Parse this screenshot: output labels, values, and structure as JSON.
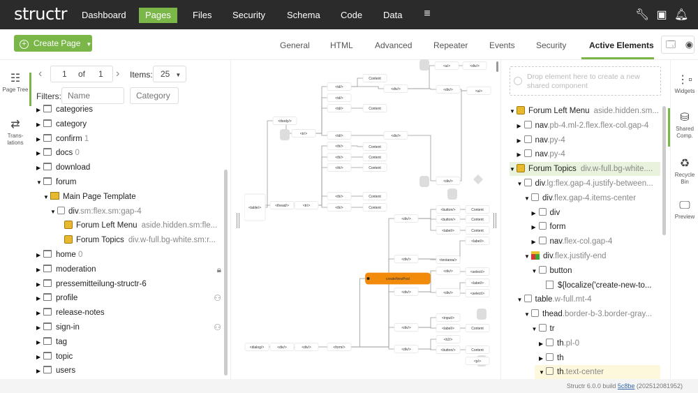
{
  "app": {
    "logo": "structr",
    "nav": [
      "Dashboard",
      "Pages",
      "Files",
      "Security",
      "Schema",
      "Code",
      "Data"
    ],
    "active_nav": "Pages",
    "menu_icon": "hamburger-icon",
    "right_icons": [
      "wrench-icon",
      "terminal-icon",
      "bell-icon"
    ]
  },
  "toolbar": {
    "create_page": "Create Page",
    "tabs": [
      "General",
      "HTML",
      "Advanced",
      "Repeater",
      "Events",
      "Security",
      "Active Elements"
    ],
    "active_tab": "Active Elements"
  },
  "left_strip": [
    {
      "label": "Page Tree",
      "icon": "page-tree-icon",
      "active": true
    },
    {
      "label": "Trans-lations",
      "icon": "translations-icon"
    }
  ],
  "pager": {
    "page": "1",
    "of": "of",
    "total": "1",
    "items_label": "Items:",
    "items_value": "25",
    "filters_label": "Filters:",
    "name_placeholder": "Name",
    "category_placeholder": "Category"
  },
  "page_tree": [
    {
      "name": "categories",
      "level": 0,
      "arrow": "right"
    },
    {
      "name": "category",
      "level": 0,
      "arrow": "right"
    },
    {
      "name": "confirm",
      "count": "1",
      "level": 0,
      "arrow": "right"
    },
    {
      "name": "docs",
      "count": "0",
      "level": 0,
      "arrow": "right"
    },
    {
      "name": "download",
      "level": 0,
      "arrow": "right"
    },
    {
      "name": "forum",
      "level": 0,
      "arrow": "down"
    },
    {
      "name": "Main Page Template",
      "level": 1,
      "arrow": "down",
      "type": "template"
    },
    {
      "name": "div",
      "cls": ".sm:flex.sm:gap-4",
      "level": 2,
      "arrow": "down",
      "type": "element"
    },
    {
      "name": "Forum Left Menu",
      "cls": "aside.hidden.sm:fle...",
      "level": 3,
      "type": "component"
    },
    {
      "name": "Forum Topics",
      "cls": "div.w-full.bg-white.sm:r...",
      "level": 3,
      "type": "component"
    },
    {
      "name": "home",
      "count": "0",
      "level": 0,
      "arrow": "right"
    },
    {
      "name": "moderation",
      "level": 0,
      "arrow": "right",
      "right_icon": "lock-icon"
    },
    {
      "name": "pressemitteilung-structr-6",
      "level": 0,
      "arrow": "right"
    },
    {
      "name": "profile",
      "level": 0,
      "arrow": "right",
      "right_icon": "users-icon"
    },
    {
      "name": "release-notes",
      "level": 0,
      "arrow": "right"
    },
    {
      "name": "sign-in",
      "level": 0,
      "arrow": "right",
      "right_icon": "users-icon"
    },
    {
      "name": "tag",
      "level": 0,
      "arrow": "right"
    },
    {
      "name": "topic",
      "level": 0,
      "arrow": "right"
    },
    {
      "name": "users",
      "level": 0,
      "arrow": "right"
    }
  ],
  "graph": {
    "nodes": [
      "<table/>",
      "<tbody/>",
      "<tr/>",
      "<td/>",
      "<td/>",
      "<td/>",
      "<td/>",
      "Content",
      "Content",
      "<div/>",
      "<div/>",
      "<a/>",
      "<div/>",
      "<div/>",
      "<a/>",
      "<th/>",
      "<th/>",
      "<th/>",
      "<th/>",
      "<th/>",
      "Content",
      "Content",
      "Content",
      "Content",
      "Content",
      "<thead/>",
      "<tr/>",
      "<div/>",
      "<button/>",
      "Content",
      "<div/>",
      "<button/>",
      "Content",
      "<label/>",
      "Content",
      "<label/>",
      "<div/>",
      "<textarea/>",
      "<div/>",
      "<select/>",
      "createNewPost",
      "<div/>",
      "<div/>",
      "<label/>",
      "<select/>",
      "<input/>",
      "<div/>",
      "<label/>",
      "Content",
      "<h2/>",
      "<div/>",
      "<button/>",
      "Content",
      "<p/>",
      "<dialog/>",
      "<div/>",
      "<div/>",
      "<form/>"
    ],
    "action_color": "#f28a0c"
  },
  "shared": {
    "drop_text": "Drop element here to create a new shared component",
    "tree": [
      {
        "name": "Forum Left Menu",
        "cls": "aside.hidden.sm...",
        "level": 0,
        "arrow": "down",
        "type": "component"
      },
      {
        "name": "nav",
        "cls": ".pb-4.ml-2.flex.flex-col.gap-4",
        "level": 1,
        "arrow": "right",
        "type": "element"
      },
      {
        "name": "nav",
        "cls": ".py-4",
        "level": 1,
        "arrow": "right",
        "type": "element"
      },
      {
        "name": "nav",
        "cls": ".py-4",
        "level": 1,
        "arrow": "right",
        "type": "element"
      },
      {
        "name": "Forum Topics",
        "cls": "div.w-full.bg-white....",
        "level": 0,
        "arrow": "down",
        "type": "component",
        "selected": true
      },
      {
        "name": "div",
        "cls": ".lg:flex.gap-4.justify-between...",
        "level": 1,
        "arrow": "down",
        "type": "element"
      },
      {
        "name": "div",
        "cls": ".flex.gap-4.items-center",
        "level": 2,
        "arrow": "down",
        "type": "element"
      },
      {
        "name": "div",
        "cls": "",
        "level": 3,
        "arrow": "right",
        "type": "element"
      },
      {
        "name": "form",
        "cls": "",
        "level": 3,
        "arrow": "right",
        "type": "element"
      },
      {
        "name": "nav",
        "cls": ".flex-col.gap-4",
        "level": 3,
        "arrow": "right",
        "type": "element"
      },
      {
        "name": "div",
        "cls": ".flex.justify-end",
        "level": 2,
        "arrow": "down",
        "type": "repeater"
      },
      {
        "name": "button",
        "cls": "",
        "level": 3,
        "arrow": "down",
        "type": "element"
      },
      {
        "name": "${localize('create-new-to...",
        "cls": "",
        "level": 4,
        "type": "text"
      },
      {
        "name": "table",
        "cls": ".w-full.mt-4",
        "level": 1,
        "arrow": "down",
        "type": "element"
      },
      {
        "name": "thead",
        "cls": ".border-b-3.border-gray...",
        "level": 2,
        "arrow": "down",
        "type": "element"
      },
      {
        "name": "tr",
        "cls": "",
        "level": 3,
        "arrow": "down",
        "type": "element"
      },
      {
        "name": "th",
        "cls": ".pl-0",
        "level": 4,
        "arrow": "right",
        "type": "element"
      },
      {
        "name": "th",
        "cls": "",
        "level": 4,
        "arrow": "right",
        "type": "element"
      },
      {
        "name": "th",
        "cls": ".text-center",
        "level": 4,
        "arrow": "down",
        "type": "element",
        "highlighted": true
      }
    ]
  },
  "right_strip": [
    {
      "label": "Widgets",
      "icon": "widgets-icon"
    },
    {
      "label": "Shared Comp.",
      "icon": "shared-components-icon",
      "active": true
    },
    {
      "label": "Recycle Bin",
      "icon": "recycle-bin-icon"
    },
    {
      "label": "Preview",
      "icon": "preview-icon"
    }
  ],
  "footer": {
    "prefix": "Structr 6.0.0 build",
    "build": "5c8be",
    "date": "(202512081952)"
  },
  "colors": {
    "accent": "#7ab648",
    "topbar": "#2b2b2b",
    "selected_row": "#e9f2dc",
    "highlight_row": "#fdf8dc"
  }
}
